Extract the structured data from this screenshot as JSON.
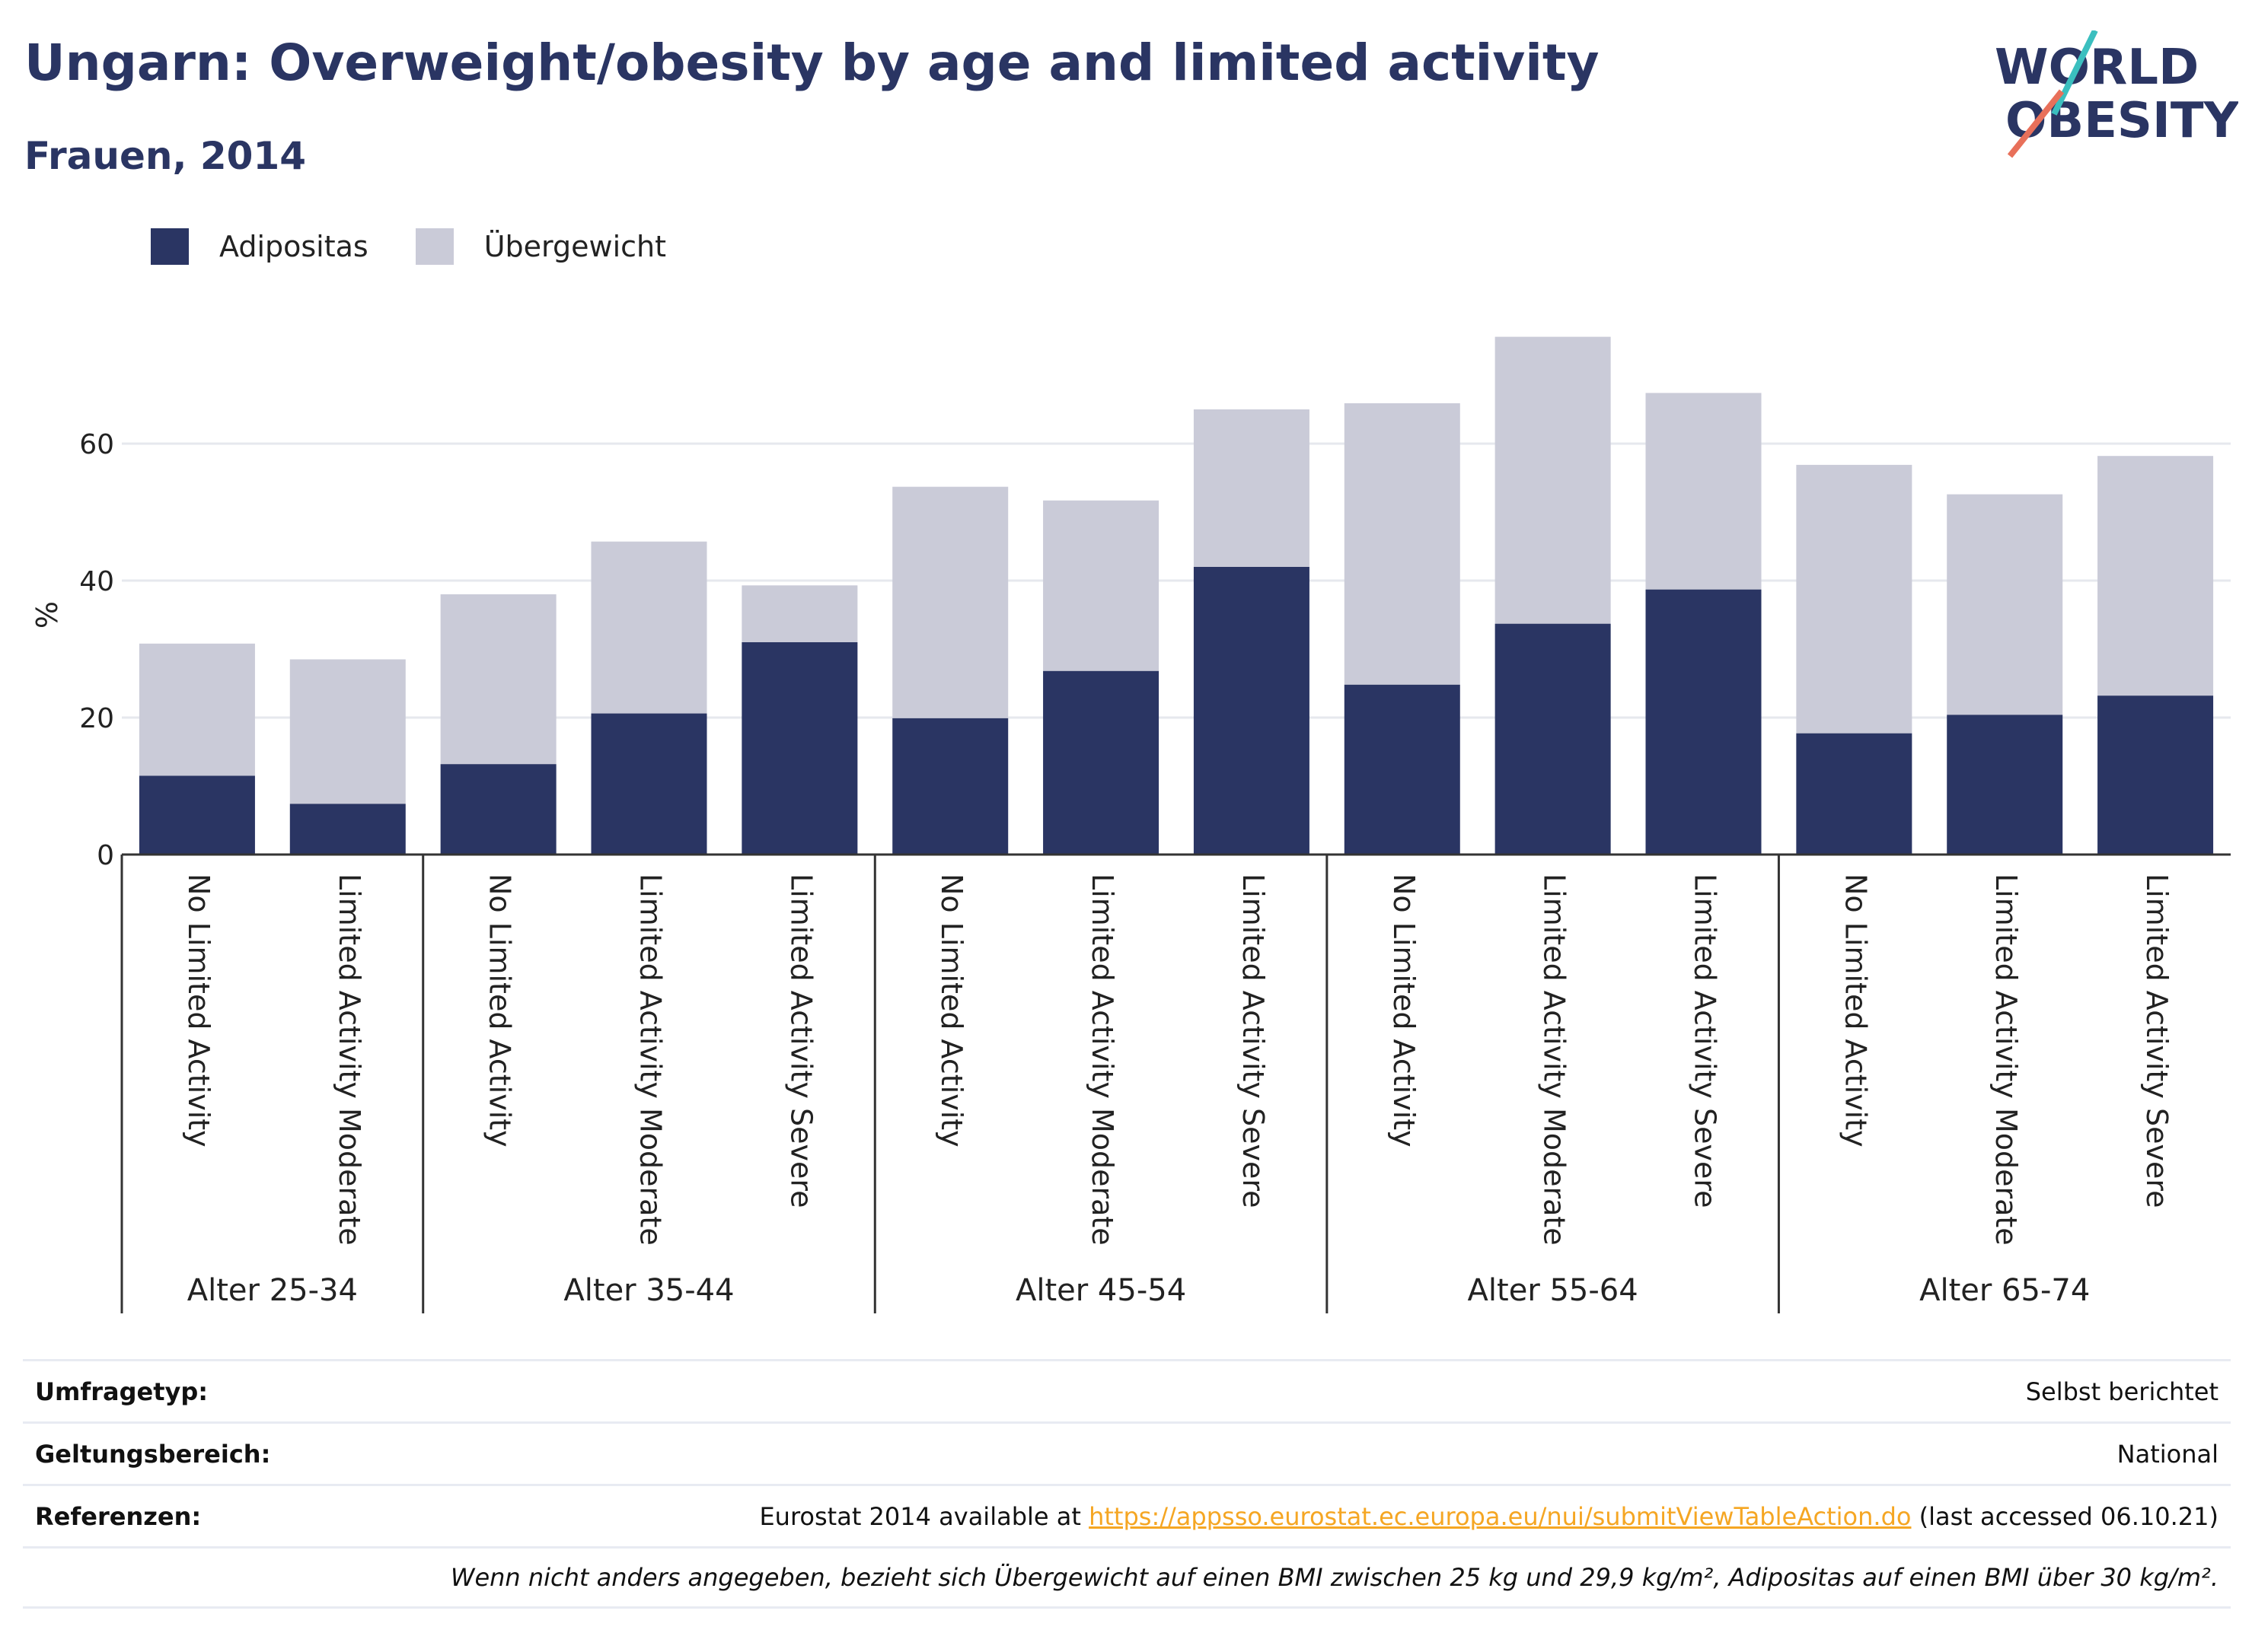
{
  "header": {
    "title": "Ungarn: Overweight/obesity by age and limited activity",
    "subtitle": "Frauen, 2014"
  },
  "logo": {
    "line1": "WORLD",
    "line2": "OBESITY",
    "accent_teal": "#3bbfbf",
    "accent_coral": "#e8705a"
  },
  "colors": {
    "obesity": "#2a3563",
    "overweight": "#cacbd8",
    "axis": "#333333",
    "grid": "#e6e8ee"
  },
  "legend": [
    {
      "label": "Adipositas",
      "color": "#2a3563"
    },
    {
      "label": "Übergewicht",
      "color": "#cacbd8"
    }
  ],
  "chart_data": {
    "type": "bar",
    "stacked": true,
    "ylabel": "%",
    "ylim": [
      0,
      80
    ],
    "yticks": [
      0,
      20,
      40,
      60
    ],
    "grid": true,
    "legend_position": "top-left",
    "groups": [
      {
        "label": "Alter 25-34",
        "categories": [
          "No Limited Activity",
          "Limited Activity Moderate"
        ]
      },
      {
        "label": "Alter 35-44",
        "categories": [
          "No Limited Activity",
          "Limited Activity Moderate",
          "Limited Activity Severe"
        ]
      },
      {
        "label": "Alter 45-54",
        "categories": [
          "No Limited Activity",
          "Limited Activity Moderate",
          "Limited Activity Severe"
        ]
      },
      {
        "label": "Alter 55-64",
        "categories": [
          "No Limited Activity",
          "Limited Activity Moderate",
          "Limited Activity Severe"
        ]
      },
      {
        "label": "Alter 65-74",
        "categories": [
          "No Limited Activity",
          "Limited Activity Moderate",
          "Limited Activity Severe"
        ]
      }
    ],
    "series": [
      {
        "name": "Adipositas",
        "values": [
          11.5,
          7.4,
          13.2,
          20.6,
          31.0,
          19.9,
          26.8,
          42.0,
          24.8,
          33.7,
          38.7,
          17.7,
          20.4,
          23.2
        ]
      },
      {
        "name": "Übergewicht",
        "values": [
          19.3,
          21.1,
          24.8,
          25.1,
          8.3,
          33.8,
          24.9,
          23.0,
          41.1,
          41.9,
          28.7,
          39.2,
          32.2,
          35.0
        ]
      }
    ]
  },
  "footer": {
    "rows": [
      {
        "label": "Umfragetyp:",
        "value": "Selbst berichtet"
      },
      {
        "label": "Geltungsbereich:",
        "value": "National"
      },
      {
        "label": "Referenzen:",
        "value_prefix": "Eurostat 2014 available at ",
        "link": "https://appsso.eurostat.ec.europa.eu/nui/submitViewTableAction.do",
        "value_suffix": " (last accessed 06.10.21)"
      }
    ],
    "note": "Wenn nicht anders angegeben, bezieht sich Übergewicht auf einen BMI zwischen 25 kg und 29,9 kg/m², Adipositas auf einen BMI über 30 kg/m²."
  }
}
